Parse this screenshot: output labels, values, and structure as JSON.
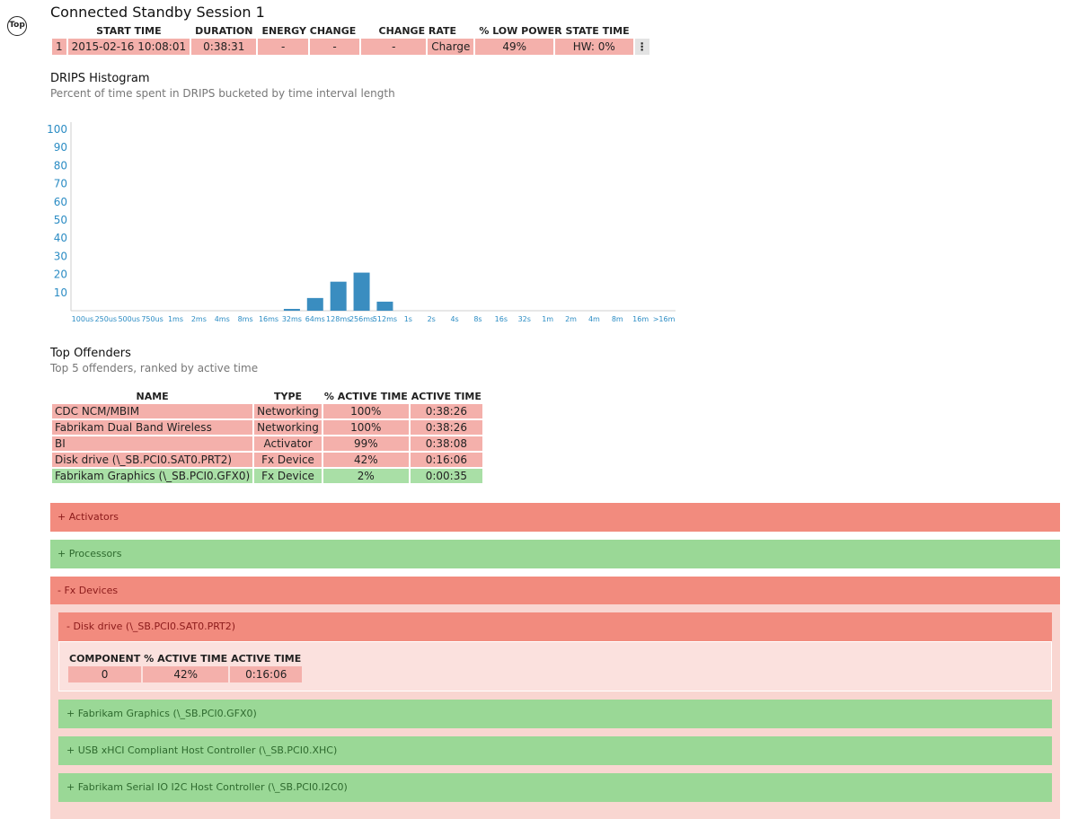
{
  "top_button": "Top",
  "session": {
    "title": "Connected Standby Session 1",
    "headers": [
      "",
      "START TIME",
      "DURATION",
      "ENERGY CHANGE",
      "CHANGE RATE",
      "",
      "% LOW POWER STATE TIME",
      ""
    ],
    "row": [
      "1",
      "2015-02-16  10:08:01",
      "0:38:31",
      "-",
      "-",
      "-",
      "Charge",
      "49%",
      "HW: 0%"
    ],
    "more_glyph": "⋮"
  },
  "histogram": {
    "title": "DRIPS Histogram",
    "subtitle": "Percent of time spent in DRIPS bucketed by time interval length"
  },
  "chart_data": {
    "type": "bar",
    "categories": [
      "100us",
      "250us",
      "500us",
      "750us",
      "1ms",
      "2ms",
      "4ms",
      "8ms",
      "16ms",
      "32ms",
      "64ms",
      "128ms",
      "256ms",
      "512ms",
      "1s",
      "2s",
      "4s",
      "8s",
      "16s",
      "32s",
      "1m",
      "2m",
      "4m",
      "8m",
      "16m",
      ">16m"
    ],
    "values": [
      0,
      0,
      0,
      0,
      0,
      0,
      0,
      0,
      0,
      1,
      7,
      16,
      21,
      5,
      0,
      0,
      0,
      0,
      0,
      0,
      0,
      0,
      0,
      0,
      0,
      0
    ],
    "ylim": [
      0,
      100
    ],
    "yticks": [
      10,
      20,
      30,
      40,
      50,
      60,
      70,
      80,
      90,
      100
    ],
    "color": "#3a8dc0",
    "title": "",
    "xlabel": "",
    "ylabel": ""
  },
  "offenders": {
    "title": "Top Offenders",
    "subtitle": "Top 5 offenders, ranked by active time",
    "headers": [
      "NAME",
      "TYPE",
      "% ACTIVE TIME",
      "ACTIVE TIME"
    ],
    "rows": [
      {
        "name": "CDC NCM/MBIM",
        "type": "Networking",
        "pct": "100%",
        "time": "0:38:26",
        "status": "red"
      },
      {
        "name": "Fabrikam Dual Band Wireless",
        "type": "Networking",
        "pct": "100%",
        "time": "0:38:26",
        "status": "red"
      },
      {
        "name": "BI",
        "type": "Activator",
        "pct": "99%",
        "time": "0:38:08",
        "status": "red"
      },
      {
        "name": "Disk drive (\\_SB.PCI0.SAT0.PRT2)",
        "type": "Fx Device",
        "pct": "42%",
        "time": "0:16:06",
        "status": "red"
      },
      {
        "name": "Fabrikam Graphics (\\_SB.PCI0.GFX0)",
        "type": "Fx Device",
        "pct": "2%",
        "time": "0:00:35",
        "status": "green"
      }
    ]
  },
  "sections": {
    "activators": "+  Activators",
    "processors": "+  Processors",
    "fx_devices": "-  Fx Devices"
  },
  "fx": {
    "disk_drive": "-  Disk drive (\\_SB.PCI0.SAT0.PRT2)",
    "component_headers": [
      "COMPONENT",
      "% ACTIVE TIME",
      "ACTIVE TIME"
    ],
    "component_row": [
      "0",
      "42%",
      "0:16:06"
    ],
    "graphics": "+  Fabrikam Graphics (\\_SB.PCI0.GFX0)",
    "usb": "+  USB xHCI Compliant Host Controller (\\_SB.PCI0.XHC)",
    "i2c": "+  Fabrikam Serial IO I2C Host Controller (\\_SB.PCI0.I2C0)"
  },
  "colors": {
    "bad": "#f28b7e",
    "good": "#9ad896",
    "chart_bar": "#3a8dc0",
    "chart_label": "#2b8cc4"
  }
}
